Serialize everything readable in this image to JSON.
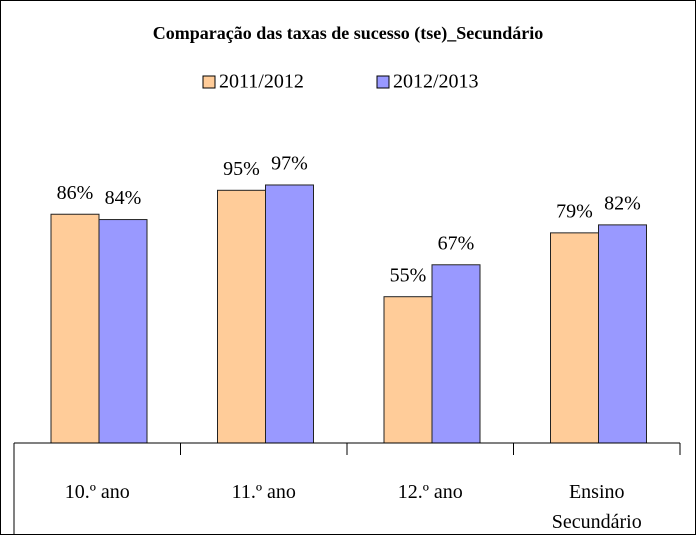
{
  "chart_data": {
    "type": "bar",
    "title": "Comparação das taxas de sucesso (tse)_Secundário",
    "categories": [
      "10.º ano",
      "11.º ano",
      "12.º ano",
      "Ensino Secundário"
    ],
    "series": [
      {
        "name": "2011/2012",
        "color": "#FFCC99",
        "values": [
          86,
          95,
          55,
          79
        ],
        "value_labels": [
          "86%",
          "95%",
          "55%",
          "79%"
        ]
      },
      {
        "name": "2012/2013",
        "color": "#9999FF",
        "values": [
          84,
          97,
          67,
          82
        ],
        "value_labels": [
          "84%",
          "97%",
          "67%",
          "82%"
        ]
      }
    ],
    "ylim": [
      0,
      100
    ]
  }
}
